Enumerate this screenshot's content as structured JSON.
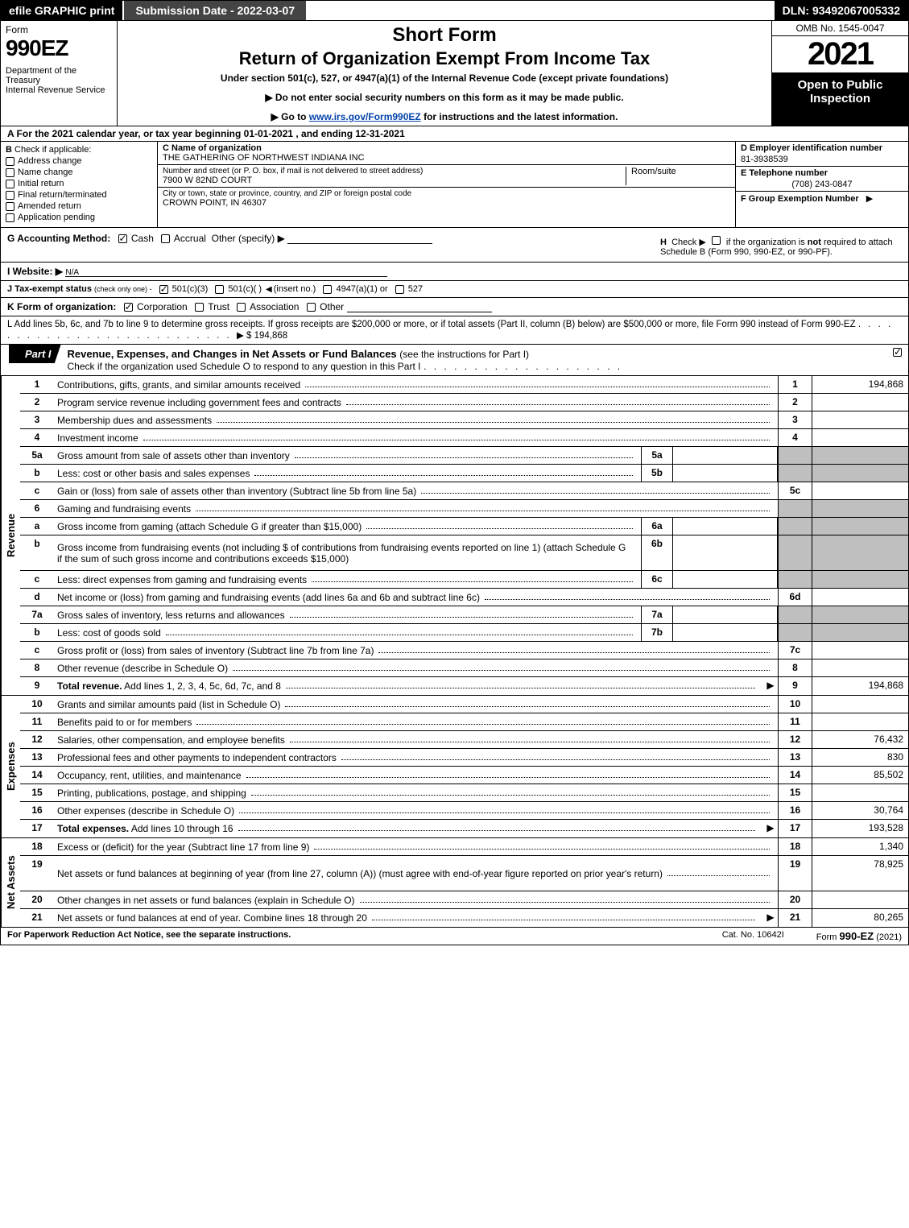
{
  "topbar": {
    "efile": "efile GRAPHIC print",
    "submission": "Submission Date - 2022-03-07",
    "dln": "DLN: 93492067005332"
  },
  "header": {
    "form_label": "Form",
    "form_no": "990EZ",
    "dept": "Department of the Treasury\nInternal Revenue Service",
    "short_form": "Short Form",
    "return_title": "Return of Organization Exempt From Income Tax",
    "under_section": "Under section 501(c), 527, or 4947(a)(1) of the Internal Revenue Code (except private foundations)",
    "no_ssn": "▶ Do not enter social security numbers on this form as it may be made public.",
    "goto_pre": "▶ Go to ",
    "goto_link": "www.irs.gov/Form990EZ",
    "goto_post": " for instructions and the latest information.",
    "omb": "OMB No. 1545-0047",
    "year": "2021",
    "open_public": "Open to Public Inspection"
  },
  "section_a": "A  For the 2021 calendar year, or tax year beginning 01-01-2021 , and ending 12-31-2021",
  "col_b": {
    "title": "B",
    "subtitle": "Check if applicable:",
    "items": [
      {
        "label": "Address change",
        "checked": false
      },
      {
        "label": "Name change",
        "checked": false
      },
      {
        "label": "Initial return",
        "checked": false
      },
      {
        "label": "Final return/terminated",
        "checked": false
      },
      {
        "label": "Amended return",
        "checked": false
      },
      {
        "label": "Application pending",
        "checked": false
      }
    ]
  },
  "col_c": {
    "name_label": "C Name of organization",
    "name": "THE GATHERING OF NORTHWEST INDIANA INC",
    "street_label": "Number and street (or P. O. box, if mail is not delivered to street address)",
    "street": "7900 W 82ND COURT",
    "room_label": "Room/suite",
    "city_label": "City or town, state or province, country, and ZIP or foreign postal code",
    "city": "CROWN POINT, IN  46307"
  },
  "col_def": {
    "d_label": "D Employer identification number",
    "d_val": "81-3938539",
    "e_label": "E Telephone number",
    "e_val": "(708) 243-0847",
    "f_label": "F Group Exemption Number",
    "f_arrow": "▶"
  },
  "g_line": {
    "label": "G Accounting Method:",
    "cash": "Cash",
    "accrual": "Accrual",
    "other": "Other (specify) ▶"
  },
  "h_line": {
    "label": "H",
    "text": "Check ▶",
    "text2": "if the organization is ",
    "not": "not",
    "text3": " required to attach Schedule B (Form 990, 990-EZ, or 990-PF)."
  },
  "i_line": {
    "label": "I Website: ▶",
    "val": "N/A"
  },
  "j_line": {
    "label": "J Tax-exempt status",
    "sub": "(check only one) -",
    "opt1": "501(c)(3)",
    "opt2": "501(c)(  )",
    "insert": "(insert no.)",
    "opt3": "4947(a)(1) or",
    "opt4": "527"
  },
  "k_line": {
    "label": "K Form of organization:",
    "opts": [
      "Corporation",
      "Trust",
      "Association",
      "Other"
    ],
    "checked_idx": 0
  },
  "l_line": {
    "text": "L Add lines 5b, 6c, and 7b to line 9 to determine gross receipts. If gross receipts are $200,000 or more, or if total assets (Part II, column (B) below) are $500,000 or more, file Form 990 instead of Form 990-EZ",
    "arrow": "▶",
    "val": "$ 194,868"
  },
  "part1": {
    "tab": "Part I",
    "title": "Revenue, Expenses, and Changes in Net Assets or Fund Balances",
    "sub": "(see the instructions for Part I)",
    "check_line": "Check if the organization used Schedule O to respond to any question in this Part I"
  },
  "revenue_lines": [
    {
      "num": "1",
      "desc": "Contributions, gifts, grants, and similar amounts received",
      "box": "1",
      "val": "194,868"
    },
    {
      "num": "2",
      "desc": "Program service revenue including government fees and contracts",
      "box": "2",
      "val": ""
    },
    {
      "num": "3",
      "desc": "Membership dues and assessments",
      "box": "3",
      "val": ""
    },
    {
      "num": "4",
      "desc": "Investment income",
      "box": "4",
      "val": ""
    },
    {
      "num": "5a",
      "desc": "Gross amount from sale of assets other than inventory",
      "sub_box": "5a",
      "shaded": true
    },
    {
      "num": "b",
      "desc": "Less: cost or other basis and sales expenses",
      "sub_box": "5b",
      "shaded": true
    },
    {
      "num": "c",
      "desc": "Gain or (loss) from sale of assets other than inventory (Subtract line 5b from line 5a)",
      "box": "5c",
      "val": ""
    },
    {
      "num": "6",
      "desc": "Gaming and fundraising events",
      "shaded": true,
      "no_box": true
    },
    {
      "num": "a",
      "desc": "Gross income from gaming (attach Schedule G if greater than $15,000)",
      "sub_box": "6a",
      "shaded": true
    },
    {
      "num": "b",
      "desc": "Gross income from fundraising events (not including $                      of contributions from fundraising events reported on line 1) (attach Schedule G if the sum of such gross income and contributions exceeds $15,000)",
      "sub_box": "6b",
      "shaded": true,
      "tall": true
    },
    {
      "num": "c",
      "desc": "Less: direct expenses from gaming and fundraising events",
      "sub_box": "6c",
      "shaded": true
    },
    {
      "num": "d",
      "desc": "Net income or (loss) from gaming and fundraising events (add lines 6a and 6b and subtract line 6c)",
      "box": "6d",
      "val": ""
    },
    {
      "num": "7a",
      "desc": "Gross sales of inventory, less returns and allowances",
      "sub_box": "7a",
      "shaded": true
    },
    {
      "num": "b",
      "desc": "Less: cost of goods sold",
      "sub_box": "7b",
      "shaded": true
    },
    {
      "num": "c",
      "desc": "Gross profit or (loss) from sales of inventory (Subtract line 7b from line 7a)",
      "box": "7c",
      "val": ""
    },
    {
      "num": "8",
      "desc": "Other revenue (describe in Schedule O)",
      "box": "8",
      "val": ""
    },
    {
      "num": "9",
      "desc": "Total revenue. Add lines 1, 2, 3, 4, 5c, 6d, 7c, and 8",
      "box": "9",
      "val": "194,868",
      "bold": true,
      "arrow": true
    }
  ],
  "expense_lines": [
    {
      "num": "10",
      "desc": "Grants and similar amounts paid (list in Schedule O)",
      "box": "10",
      "val": ""
    },
    {
      "num": "11",
      "desc": "Benefits paid to or for members",
      "box": "11",
      "val": ""
    },
    {
      "num": "12",
      "desc": "Salaries, other compensation, and employee benefits",
      "box": "12",
      "val": "76,432"
    },
    {
      "num": "13",
      "desc": "Professional fees and other payments to independent contractors",
      "box": "13",
      "val": "830"
    },
    {
      "num": "14",
      "desc": "Occupancy, rent, utilities, and maintenance",
      "box": "14",
      "val": "85,502"
    },
    {
      "num": "15",
      "desc": "Printing, publications, postage, and shipping",
      "box": "15",
      "val": ""
    },
    {
      "num": "16",
      "desc": "Other expenses (describe in Schedule O)",
      "box": "16",
      "val": "30,764"
    },
    {
      "num": "17",
      "desc": "Total expenses. Add lines 10 through 16",
      "box": "17",
      "val": "193,528",
      "bold": true,
      "arrow": true
    }
  ],
  "netassets_lines": [
    {
      "num": "18",
      "desc": "Excess or (deficit) for the year (Subtract line 17 from line 9)",
      "box": "18",
      "val": "1,340"
    },
    {
      "num": "19",
      "desc": "Net assets or fund balances at beginning of year (from line 27, column (A)) (must agree with end-of-year figure reported on prior year's return)",
      "box": "19",
      "val": "78,925",
      "tall": true
    },
    {
      "num": "20",
      "desc": "Other changes in net assets or fund balances (explain in Schedule O)",
      "box": "20",
      "val": ""
    },
    {
      "num": "21",
      "desc": "Net assets or fund balances at end of year. Combine lines 18 through 20",
      "box": "21",
      "val": "80,265",
      "arrow": true
    }
  ],
  "vertical_labels": {
    "revenue": "Revenue",
    "expenses": "Expenses",
    "netassets": "Net Assets"
  },
  "footer": {
    "left": "For Paperwork Reduction Act Notice, see the separate instructions.",
    "mid": "Cat. No. 10642I",
    "right_pre": "Form ",
    "right_form": "990-EZ",
    "right_post": " (2021)"
  },
  "colors": {
    "black": "#000000",
    "white": "#ffffff",
    "shade": "#bfbfbf",
    "link": "#0645ad",
    "darkgrey": "#444444"
  }
}
